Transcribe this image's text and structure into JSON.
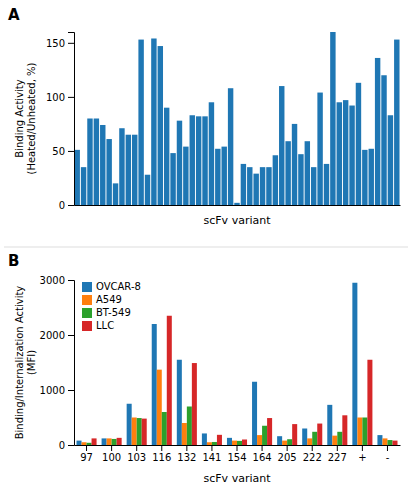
{
  "chart_data": [
    {
      "type": "bar",
      "title": "A",
      "ylabel": "Binding Activity\n(Heated/Unheated, %)",
      "xlabel": "scFv variant",
      "ylim": [
        0,
        160
      ],
      "yticks": [
        0,
        50,
        100,
        150
      ],
      "values": [
        51,
        35,
        80,
        80,
        74,
        61,
        20,
        71,
        65,
        65,
        153,
        28,
        154,
        147,
        90,
        48,
        78,
        54,
        83,
        82,
        82,
        95,
        52,
        54,
        108,
        2,
        38,
        35,
        29,
        35,
        35,
        46,
        110,
        59,
        75,
        47,
        59,
        35,
        104,
        38,
        160,
        95,
        97,
        92,
        113,
        51,
        52,
        136,
        120,
        83,
        153
      ],
      "tick_labels": "y",
      "grid": false
    },
    {
      "type": "bar",
      "title": "B",
      "ylabel": "Binding/Internalization Activity\n(MFI)",
      "xlabel": "scFv variant",
      "ylim": [
        0,
        3000
      ],
      "yticks": [
        0,
        1000,
        2000,
        3000
      ],
      "categories": [
        "97",
        "100",
        "103",
        "116",
        "132",
        "141",
        "154",
        "164",
        "205",
        "222",
        "227",
        "+",
        "-"
      ],
      "series": [
        {
          "name": "OVCAR-8",
          "values": [
            80,
            120,
            750,
            2200,
            1550,
            210,
            130,
            1150,
            160,
            300,
            730,
            2950,
            180
          ]
        },
        {
          "name": "A549",
          "values": [
            50,
            120,
            500,
            1370,
            400,
            50,
            80,
            180,
            80,
            120,
            170,
            500,
            120
          ]
        },
        {
          "name": "BT-549",
          "values": [
            40,
            110,
            490,
            600,
            700,
            55,
            75,
            350,
            105,
            240,
            240,
            500,
            90
          ]
        },
        {
          "name": "LLC",
          "values": [
            120,
            130,
            480,
            2350,
            1490,
            185,
            100,
            490,
            380,
            390,
            540,
            1550,
            80
          ]
        }
      ],
      "legend": "upper left",
      "grid": false
    }
  ]
}
